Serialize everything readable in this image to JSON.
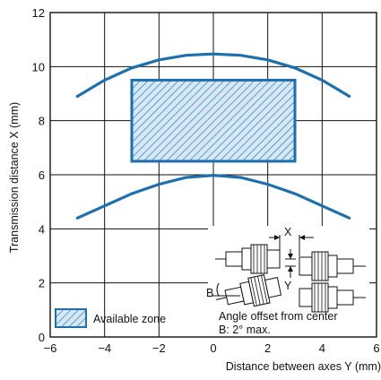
{
  "chart_data": {
    "type": "line",
    "title": "",
    "xlabel": "Distance between axes Y (mm)",
    "ylabel": "Transmission distance X (mm)",
    "xlim": [
      -6,
      6
    ],
    "ylim": [
      0,
      12
    ],
    "x_ticks": [
      "−6",
      "−4",
      "−2",
      "0",
      "2",
      "4",
      "6"
    ],
    "y_ticks": [
      "0",
      "2",
      "4",
      "6",
      "8",
      "10",
      "12"
    ],
    "grid": true,
    "series": [
      {
        "x": [
          -5,
          -4,
          -3,
          -2,
          -1,
          0,
          1,
          2,
          3,
          4,
          5
        ],
        "y": [
          8.9,
          9.5,
          9.95,
          10.25,
          10.42,
          10.47,
          10.42,
          10.25,
          9.95,
          9.5,
          8.9
        ]
      },
      {
        "x": [
          -5,
          -4,
          -3,
          -2,
          -1,
          0,
          1,
          2,
          3,
          4,
          5
        ],
        "y": [
          4.4,
          4.85,
          5.3,
          5.65,
          5.9,
          5.98,
          5.9,
          5.65,
          5.3,
          4.85,
          4.4
        ]
      }
    ],
    "available_zone": {
      "x": [
        -3,
        3
      ],
      "y": [
        6.5,
        9.5
      ]
    },
    "legend": {
      "label": "Available zone",
      "placement": "bottom-left"
    },
    "inset": {
      "labels": {
        "x": "X",
        "y": "Y",
        "b": "B"
      },
      "note_line1": "Angle offset from center",
      "note_line2": "B: 2° max."
    },
    "colors": {
      "curve": "#1f6fad",
      "zone_fill": "#d6e8f5",
      "zone_hatch": "#1f6fad",
      "grid": "#111111"
    }
  }
}
